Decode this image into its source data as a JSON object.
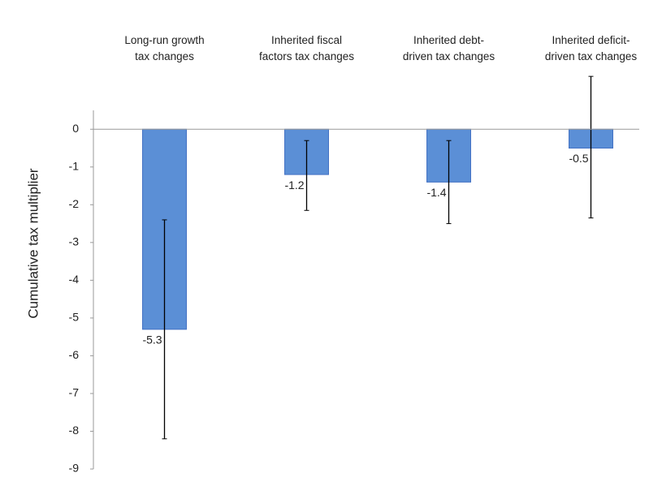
{
  "chart_data": {
    "type": "bar",
    "y_label": "Cumulative tax multiplier",
    "categories": [
      "Long-run growth\ntax changes",
      "Inherited fiscal\nfactors tax changes",
      "Inherited debt-\ndriven tax changes",
      "Inherited deficit-\ndriven tax changes"
    ],
    "values": [
      -5.3,
      -1.2,
      -1.4,
      -0.5
    ],
    "error_lower": [
      -8.2,
      -2.15,
      -2.5,
      -2.35
    ],
    "error_upper": [
      -2.4,
      -0.3,
      -0.3,
      1.4
    ],
    "color": "#5b8fd6",
    "ylim": [
      -9,
      0.5
    ],
    "yticks": [
      0,
      -1,
      -2,
      -3,
      -4,
      -5,
      -6,
      -7,
      -8,
      -9
    ]
  }
}
